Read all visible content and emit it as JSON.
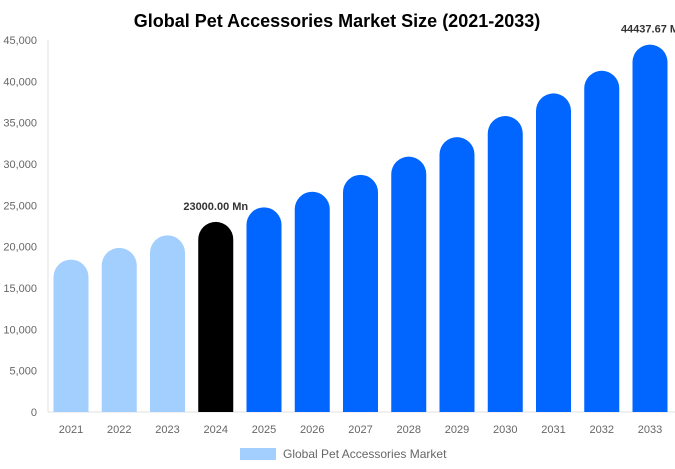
{
  "chart_data": {
    "type": "bar",
    "title": "Global Pet Accessories Market Size (2021-2033)",
    "xlabel": "",
    "ylabel": "",
    "categories": [
      "2021",
      "2022",
      "2023",
      "2024",
      "2025",
      "2026",
      "2027",
      "2028",
      "2029",
      "2030",
      "2031",
      "2032",
      "2033"
    ],
    "series": [
      {
        "name": "Global Pet Accessories Market",
        "values": [
          18440,
          19850,
          21370,
          23000,
          24760,
          26650,
          28690,
          30890,
          33250,
          35800,
          38540,
          41280,
          44437.67
        ]
      }
    ],
    "bar_colors": [
      "#a3cfff",
      "#a3cfff",
      "#a3cfff",
      "#000000",
      "#0066ff",
      "#0066ff",
      "#0066ff",
      "#0066ff",
      "#0066ff",
      "#0066ff",
      "#0066ff",
      "#0066ff",
      "#0066ff"
    ],
    "data_labels": [
      {
        "category": "2024",
        "text": "23000.00 Mn"
      },
      {
        "category": "2033",
        "text": "44437.67 M"
      }
    ],
    "ylim": [
      0,
      45000
    ],
    "yticks": [
      "0",
      "5,000",
      "10,000",
      "15,000",
      "20,000",
      "25,000",
      "30,000",
      "35,000",
      "40,000",
      "45,000"
    ],
    "grid": false,
    "legend_position": "bottom",
    "legend_color": "#a3cfff"
  }
}
